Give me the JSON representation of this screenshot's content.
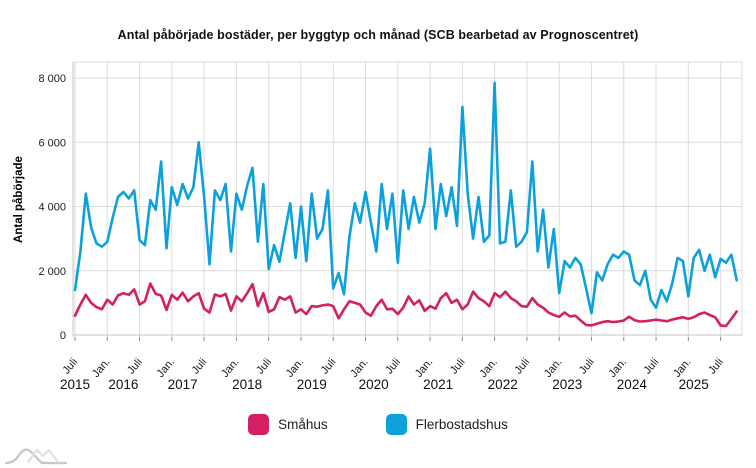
{
  "title": "Antal påbörjade bostäder, per byggtyp och månad (SCB bearbetad av Prognoscentret)",
  "chart_data": {
    "type": "line",
    "title": "Antal påbörjade bostäder, per byggtyp och månad (SCB bearbetad av Prognoscentret)",
    "xlabel": "",
    "ylabel": "Antal påbörjade",
    "x_start_month": "Juli 2015",
    "x_tick_labels": [
      "Juli",
      "Jan.",
      "Juli",
      "Jan.",
      "Juli",
      "Jan.",
      "Juli",
      "Jan.",
      "Juli",
      "Jan.",
      "Juli",
      "Jan.",
      "Juli",
      "Jan.",
      "Juli",
      "Jan.",
      "Juli",
      "Jan.",
      "Juli",
      "Jan.",
      "Juli"
    ],
    "year_labels": [
      "2015",
      "2016",
      "2017",
      "2018",
      "2019",
      "2020",
      "2021",
      "2022",
      "2023",
      "2024",
      "2025"
    ],
    "year_label_month_positions": [
      0,
      9,
      20,
      32,
      44,
      55.5,
      67.5,
      79.5,
      91.5,
      103.5,
      115
    ],
    "ytick_values": [
      0,
      2000,
      4000,
      6000,
      8000
    ],
    "ytick_labels": [
      "0",
      "2 000",
      "4 000",
      "6 000",
      "8 000"
    ],
    "ylim": [
      0,
      8500
    ],
    "grid": true,
    "grid_color": "#dcdcdc",
    "axis_color": "#c4c4c4",
    "tick_color": "#8a8a8a",
    "text_color": "#1a1a1a",
    "legend_position": "bottom",
    "series": [
      {
        "name": "Småhus",
        "color": "#D51F63",
        "values": [
          600,
          950,
          1250,
          1000,
          870,
          800,
          1100,
          950,
          1230,
          1300,
          1250,
          1420,
          950,
          1050,
          1600,
          1280,
          1230,
          780,
          1250,
          1100,
          1320,
          1050,
          1200,
          1300,
          820,
          700,
          1260,
          1200,
          1280,
          760,
          1200,
          1050,
          1300,
          1580,
          900,
          1300,
          720,
          800,
          1180,
          1100,
          1200,
          700,
          800,
          650,
          900,
          880,
          920,
          950,
          900,
          520,
          800,
          1050,
          1000,
          950,
          700,
          600,
          900,
          1100,
          800,
          820,
          650,
          850,
          1200,
          950,
          1080,
          750,
          900,
          820,
          1150,
          1300,
          1000,
          1100,
          800,
          950,
          1350,
          1150,
          1050,
          900,
          1300,
          1180,
          1350,
          1150,
          1050,
          900,
          880,
          1150,
          950,
          850,
          700,
          620,
          570,
          700,
          580,
          600,
          450,
          310,
          300,
          350,
          400,
          430,
          400,
          420,
          450,
          570,
          460,
          420,
          430,
          450,
          480,
          450,
          430,
          480,
          520,
          550,
          500,
          550,
          650,
          700,
          620,
          550,
          300,
          280,
          500,
          730
        ]
      },
      {
        "name": "Flerbostadshus",
        "color": "#0CA0DC",
        "values": [
          1400,
          2600,
          4400,
          3350,
          2850,
          2750,
          2900,
          3650,
          4300,
          4450,
          4250,
          4500,
          2950,
          2800,
          4200,
          3900,
          5400,
          2700,
          4600,
          4050,
          4700,
          4250,
          4600,
          6000,
          4300,
          2200,
          4500,
          4200,
          4700,
          2600,
          4400,
          3900,
          4650,
          5200,
          2900,
          4700,
          2050,
          2800,
          2280,
          3200,
          4100,
          2400,
          4000,
          2300,
          4400,
          3000,
          3300,
          4500,
          1450,
          1930,
          1270,
          3050,
          4100,
          3500,
          4450,
          3500,
          2600,
          4700,
          3300,
          4400,
          2250,
          4500,
          3300,
          4300,
          3500,
          4100,
          5800,
          3300,
          4700,
          3700,
          4600,
          3400,
          7100,
          4400,
          3000,
          4300,
          2900,
          3100,
          7850,
          2850,
          2900,
          4500,
          2750,
          2900,
          3200,
          5400,
          2600,
          3900,
          2100,
          3300,
          1300,
          2300,
          2100,
          2400,
          2200,
          1450,
          680,
          1950,
          1700,
          2200,
          2500,
          2400,
          2600,
          2500,
          1700,
          1550,
          2000,
          1100,
          850,
          1400,
          1050,
          1600,
          2400,
          2300,
          1200,
          2400,
          2650,
          2000,
          2500,
          1800,
          2370,
          2250,
          2500,
          1700
        ]
      }
    ]
  },
  "logo": {
    "name": "prognoscentret-mountains-logo"
  }
}
